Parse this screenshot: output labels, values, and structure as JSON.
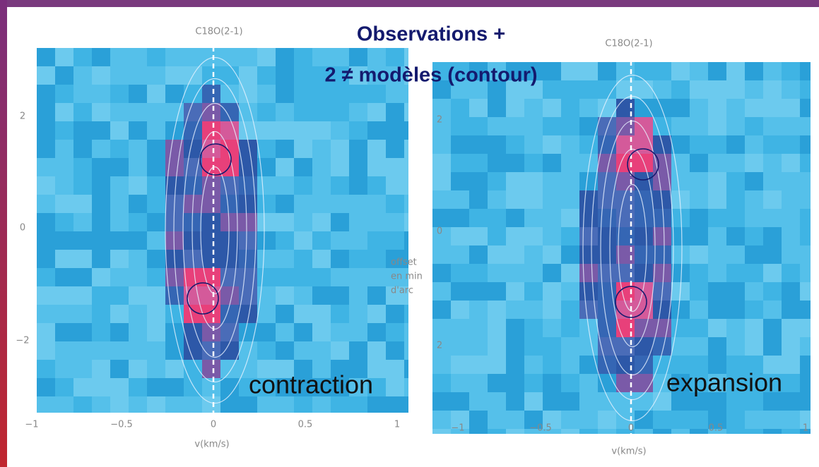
{
  "headline": {
    "line1": "Observations +",
    "line2": "2 ≠ modèles (contour)"
  },
  "axis_note": [
    "offset",
    "en min",
    "d'arc"
  ],
  "panels": [
    {
      "title": "C18O(2-1)",
      "xticks": [
        "−1",
        "−0.5",
        "0",
        "0.5",
        "1"
      ],
      "yticks": [
        "2",
        "0",
        "−2"
      ],
      "xlabel": "v(km/s)",
      "label": "contraction"
    },
    {
      "title": "C18O(2-1)",
      "xticks": [
        "−1",
        "−0.5",
        "0",
        "0.5",
        "1"
      ],
      "yticks": [
        "2",
        "0",
        "2"
      ],
      "xlabel": "v(km/s)",
      "label": "expansion"
    }
  ]
}
